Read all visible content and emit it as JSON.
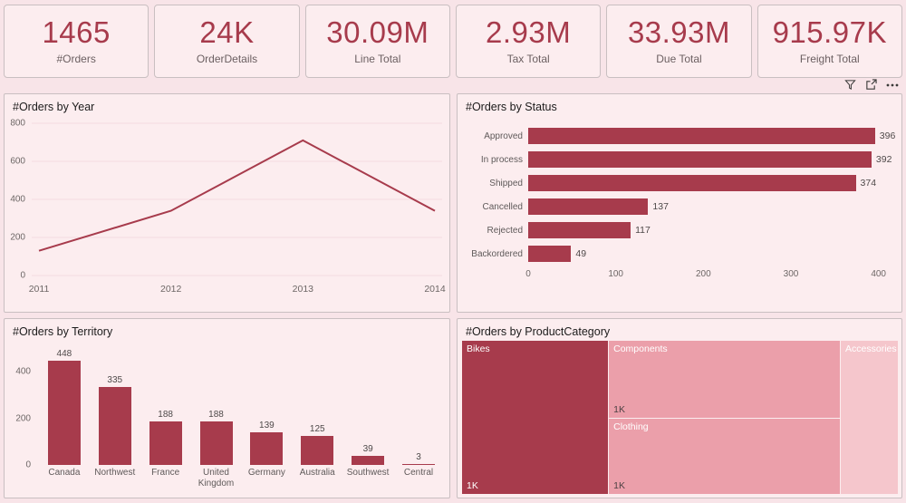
{
  "theme": {
    "accent": "#a73b4c",
    "page_bg": "#f8e4e8",
    "panel_bg": "#fcedef",
    "treemap_mid": "#eb9faa",
    "treemap_light": "#f5c6cc"
  },
  "kpi_cards": [
    {
      "value": "1465",
      "label": "#Orders"
    },
    {
      "value": "24K",
      "label": "OrderDetails"
    },
    {
      "value": "30.09M",
      "label": "Line Total"
    },
    {
      "value": "2.93M",
      "label": "Tax Total"
    },
    {
      "value": "33.93M",
      "label": "Due Total"
    },
    {
      "value": "915.97K",
      "label": "Freight Total"
    }
  ],
  "visual_header": {
    "icons": [
      "filter-icon",
      "focus-mode-icon",
      "more-options-icon"
    ]
  },
  "chart_data": [
    {
      "type": "line",
      "title": "#Orders by Year",
      "x": [
        "2011",
        "2012",
        "2013",
        "2014"
      ],
      "values": [
        130,
        340,
        710,
        340
      ],
      "ylim": [
        0,
        800
      ],
      "yticks": [
        0,
        200,
        400,
        600,
        800
      ],
      "grid": true,
      "legend": "none",
      "color": "#a73b4c"
    },
    {
      "type": "bar-horizontal",
      "title": "#Orders by Status",
      "categories": [
        "Approved",
        "In process",
        "Shipped",
        "Cancelled",
        "Rejected",
        "Backordered"
      ],
      "values": [
        396,
        392,
        374,
        137,
        117,
        49
      ],
      "xlim": [
        0,
        400
      ],
      "xticks": [
        0,
        100,
        200,
        300,
        400
      ],
      "data_labels": true,
      "color": "#a73b4c"
    },
    {
      "type": "bar",
      "title": "#Orders by Territory",
      "categories": [
        "Canada",
        "Northwest",
        "France",
        "United Kingdom",
        "Germany",
        "Australia",
        "Southwest",
        "Central"
      ],
      "values": [
        448,
        335,
        188,
        188,
        139,
        125,
        39,
        3
      ],
      "ylim": [
        0,
        460
      ],
      "yticks": [
        0,
        200,
        400
      ],
      "data_labels": true,
      "color": "#a73b4c"
    },
    {
      "type": "treemap",
      "title": "#Orders by ProductCategory",
      "items": [
        {
          "label": "Bikes",
          "value": "1K",
          "color": "#a73b4c",
          "value_color": "#ffffff"
        },
        {
          "label": "Components",
          "value": "1K",
          "color": "#eb9faa",
          "value_color": "#4e4244"
        },
        {
          "label": "Clothing",
          "value": "1K",
          "color": "#eb9faa",
          "value_color": "#4e4244"
        },
        {
          "label": "Accessories",
          "value": "",
          "color": "#f5c6cc",
          "value_color": "#4e4244"
        }
      ]
    }
  ]
}
